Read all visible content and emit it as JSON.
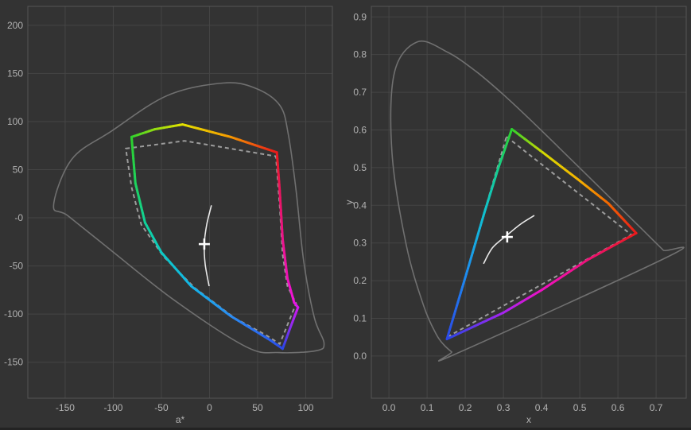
{
  "page": {
    "background": "#333333",
    "tick_color": "#b2b2b2",
    "grid_color": "#454545",
    "border_color": "#565656",
    "locus_color": "#707070",
    "reference_color": "#9c9c9c",
    "curve_color": "#e9e9e9",
    "marker_color": "#ffffff"
  },
  "chart_data": [
    {
      "type": "line",
      "title": "",
      "xlabel": "a*",
      "ylabel": "",
      "xlim": [
        -188.8,
        127.7
      ],
      "ylim": [
        -187.4,
        219.7
      ],
      "grid": true,
      "legend": "none",
      "xticks": [
        -150,
        -100,
        -50,
        0,
        50,
        100
      ],
      "xtick_labels": [
        "-150",
        "-100",
        "-50",
        "0",
        "50",
        "100"
      ],
      "yticks": [
        200,
        150,
        100,
        50,
        0,
        -50,
        -100,
        -150
      ],
      "ytick_labels": [
        "200",
        "150",
        "100",
        "50",
        "-0",
        "-50",
        "-100",
        "-150"
      ],
      "series": [
        {
          "name": "full-color-space-outline",
          "role": "outline",
          "smooth": true,
          "closed": true,
          "color": "#707070",
          "width": 1.6,
          "points": [
            [
              -162,
              13
            ],
            [
              -143,
              61
            ],
            [
              -102,
              90
            ],
            [
              -44,
              127
            ],
            [
              14,
              140
            ],
            [
              47,
              135
            ],
            [
              73,
              117
            ],
            [
              82,
              86
            ],
            [
              90,
              28
            ],
            [
              98,
              -46
            ],
            [
              109,
              -104
            ],
            [
              119,
              -130
            ],
            [
              111,
              -138
            ],
            [
              72,
              -140
            ],
            [
              38,
              -134
            ],
            [
              -36,
              -86
            ],
            [
              -102,
              -34
            ],
            [
              -147,
              2
            ]
          ]
        },
        {
          "name": "reference-gamut",
          "role": "dashed-polygon",
          "closed": true,
          "color": "#9c9c9c",
          "width": 2,
          "dash": "5 4",
          "points": [
            [
              -87,
              72
            ],
            [
              -26,
              80
            ],
            [
              69,
              64
            ],
            [
              73,
              12
            ],
            [
              76,
              -38
            ],
            [
              81,
              -71
            ],
            [
              90,
              -89
            ],
            [
              73,
              -131
            ],
            [
              59,
              -122
            ],
            [
              26,
              -104
            ],
            [
              -15,
              -73
            ],
            [
              -48,
              -40
            ],
            [
              -71,
              -7
            ],
            [
              -81,
              32
            ]
          ]
        },
        {
          "name": "display-gamut",
          "role": "colored-polygon",
          "closed": true,
          "width": 3,
          "points": [
            [
              -81,
              84
            ],
            [
              -57,
              92
            ],
            [
              -28,
              97
            ],
            [
              22,
              84
            ],
            [
              70,
              68
            ],
            [
              73,
              28
            ],
            [
              76,
              -22
            ],
            [
              81,
              -63
            ],
            [
              88,
              -88
            ],
            [
              92,
              -93
            ],
            [
              84,
              -114
            ],
            [
              76,
              -136
            ],
            [
              63,
              -127
            ],
            [
              22,
              -102
            ],
            [
              -19,
              -71
            ],
            [
              -50,
              -36
            ],
            [
              -67,
              -5
            ],
            [
              -77,
              36
            ]
          ],
          "point_colors": [
            "#2dd12d",
            "#8fdc12",
            "#e3e300",
            "#f59a00",
            "#ea1a1a",
            "#ea155e",
            "#ec1389",
            "#ee12b6",
            "#f013df",
            "#d816f2",
            "#8c2bf0",
            "#2b46e6",
            "#2b5fee",
            "#2b8bf2",
            "#14b5e9",
            "#0cc9c4",
            "#10d29b",
            "#1ed35e"
          ]
        },
        {
          "name": "tone-response-curve",
          "role": "curve",
          "smooth": true,
          "closed": false,
          "color": "#e9e9e9",
          "width": 1.6,
          "points": [
            [
              2,
              13
            ],
            [
              -2.9,
              -7
            ],
            [
              -5.4,
              -27
            ],
            [
              -4.5,
              -48
            ],
            [
              -0.4,
              -71
            ]
          ]
        },
        {
          "name": "white-point",
          "role": "marker",
          "marker": "plus",
          "color": "#ffffff",
          "size": 14,
          "points": [
            [
              -5.4,
              -27.3
            ]
          ]
        }
      ]
    },
    {
      "type": "line",
      "title": "",
      "xlabel": "x",
      "ylabel": "y",
      "xlim": [
        -0.046,
        0.779
      ],
      "ylim": [
        -0.112,
        0.928
      ],
      "grid": true,
      "legend": "none",
      "xticks": [
        0.0,
        0.1,
        0.2,
        0.3,
        0.4,
        0.5,
        0.6,
        0.7
      ],
      "xtick_labels": [
        "0.0",
        "0.1",
        "0.2",
        "0.3",
        "0.4",
        "0.5",
        "0.6",
        "0.7"
      ],
      "yticks": [
        0.9,
        0.8,
        0.7,
        0.6,
        0.5,
        0.4,
        0.3,
        0.2,
        0.1,
        0.0
      ],
      "ytick_labels": [
        "0.9",
        "0.8",
        "0.7",
        "0.6",
        "0.5",
        "0.4",
        "0.3",
        "0.2",
        "0.1",
        "0.0"
      ],
      "series": [
        {
          "name": "spectral-locus",
          "role": "outline",
          "smooth": true,
          "closed": true,
          "color": "#707070",
          "width": 1.6,
          "points": [
            [
              0.1741,
              0.005
            ],
            [
              0.1644,
              0.0109
            ],
            [
              0.144,
              0.0297
            ],
            [
              0.1241,
              0.0578
            ],
            [
              0.0913,
              0.1327
            ],
            [
              0.0454,
              0.295
            ],
            [
              0.0082,
              0.5384
            ],
            [
              0.0139,
              0.7502
            ],
            [
              0.0743,
              0.8338
            ],
            [
              0.1547,
              0.8059
            ],
            [
              0.2296,
              0.7543
            ],
            [
              0.3016,
              0.6923
            ],
            [
              0.3731,
              0.6245
            ],
            [
              0.4441,
              0.5547
            ],
            [
              0.5125,
              0.4866
            ],
            [
              0.5752,
              0.4242
            ],
            [
              0.627,
              0.3725
            ],
            [
              0.6658,
              0.334
            ],
            [
              0.6915,
              0.3083
            ],
            [
              0.719,
              0.2809
            ],
            [
              0.7347,
              0.2653
            ]
          ]
        },
        {
          "name": "reference-gamut",
          "role": "dashed-polygon",
          "closed": true,
          "color": "#9c9c9c",
          "width": 2,
          "dash": "5 4",
          "points": [
            [
              0.308,
              0.582
            ],
            [
              0.635,
              0.322
            ],
            [
              0.154,
              0.051
            ]
          ]
        },
        {
          "name": "display-gamut",
          "role": "colored-polygon",
          "closed": true,
          "width": 3,
          "points": [
            [
              0.322,
              0.602
            ],
            [
              0.41,
              0.535
            ],
            [
              0.5,
              0.465
            ],
            [
              0.575,
              0.405
            ],
            [
              0.648,
              0.326
            ],
            [
              0.52,
              0.255
            ],
            [
              0.4,
              0.175
            ],
            [
              0.3,
              0.115
            ],
            [
              0.152,
              0.045
            ],
            [
              0.205,
              0.225
            ],
            [
              0.25,
              0.38
            ],
            [
              0.287,
              0.5
            ]
          ],
          "point_colors": [
            "#2dd12d",
            "#d8d800",
            "#f5b300",
            "#f46900",
            "#ea1a1a",
            "#ee1277",
            "#f011c2",
            "#a824f0",
            "#2b46e6",
            "#1d8ef0",
            "#10c2d2",
            "#15cf8d"
          ]
        },
        {
          "name": "tone-response-curve",
          "role": "curve",
          "smooth": true,
          "closed": false,
          "color": "#e9e9e9",
          "width": 1.6,
          "points": [
            [
              0.248,
              0.245
            ],
            [
              0.272,
              0.288
            ],
            [
              0.31,
              0.321
            ],
            [
              0.345,
              0.35
            ],
            [
              0.381,
              0.373
            ]
          ]
        },
        {
          "name": "white-point",
          "role": "marker",
          "marker": "plus",
          "color": "#ffffff",
          "size": 14,
          "points": [
            [
              0.31,
              0.316
            ]
          ]
        }
      ]
    }
  ]
}
